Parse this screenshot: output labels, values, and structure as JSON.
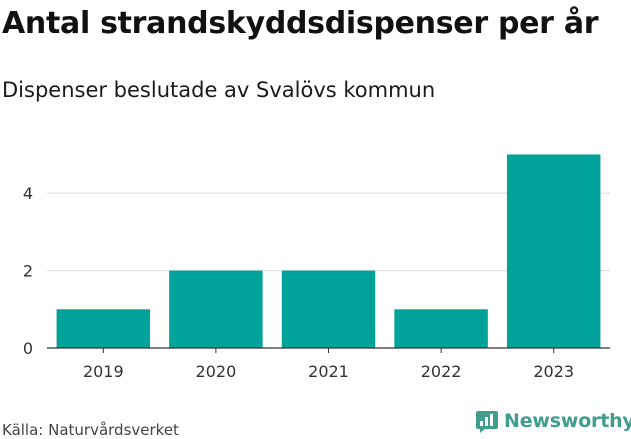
{
  "chart_data": {
    "type": "bar",
    "title": "Antal strandskyddsdispenser per år",
    "subtitle": "Dispenser beslutade av Svalövs kommun",
    "categories": [
      "2019",
      "2020",
      "2021",
      "2022",
      "2023"
    ],
    "values": [
      1,
      2,
      2,
      1,
      5
    ],
    "yticks": [
      "0",
      "2",
      "4"
    ],
    "ylim": [
      0,
      5.4
    ],
    "xlabel": "",
    "ylabel": "",
    "grid": true,
    "bar_color": "#00a29a"
  },
  "footer": {
    "source": "Källa: Naturvårdsverket",
    "brand": "Newsworthy",
    "brand_color": "#3f9e8e"
  }
}
